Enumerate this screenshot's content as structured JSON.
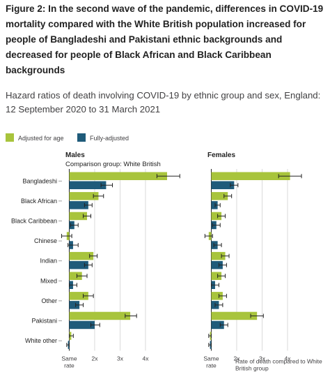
{
  "title": "Figure 2: In the second wave of the pandemic, differences in COVID-19 mortality compared with the White British population increased for people of Bangladeshi and Pakistani ethnic backgrounds and decreased for people of Black African and Black Caribbean backgrounds",
  "subtitle": "Hazard ratios of death involving COVID-19 by ethnic group and sex, England: 12 September 2020 to 31 March 2021",
  "colors": {
    "adjusted_for_age": "#a8c43c",
    "fully_adjusted": "#1f5b7a",
    "grid": "#d0d0d0",
    "axis": "#222222"
  },
  "chart_data": {
    "type": "bar",
    "orientation": "horizontal",
    "legend": [
      "Adjusted for age",
      "Fully-adjusted"
    ],
    "legend_placement": "top-left",
    "comparison_label": "Comparison group: White British",
    "x_ticks": [
      {
        "value": 1,
        "label": "Same rate"
      },
      {
        "value": 2,
        "label": "2x"
      },
      {
        "value": 3,
        "label": "3x"
      },
      {
        "value": 4,
        "label": "4x"
      }
    ],
    "x_axis_note": "Rate of death compared to White British group",
    "xlim": [
      0.85,
      5.0
    ],
    "grid": true,
    "categories": [
      "Bangladeshi",
      "Black African",
      "Black Caribbean",
      "Chinese",
      "Indian",
      "Mixed",
      "Other",
      "Pakistani",
      "White other"
    ],
    "panels": [
      {
        "name": "Males",
        "series": [
          {
            "name": "Adjusted for age",
            "values": [
              4.85,
              2.15,
              1.7,
              0.9,
              1.95,
              1.5,
              1.75,
              3.4,
              1.08
            ],
            "ci_low": [
              4.45,
              1.95,
              1.55,
              0.7,
              1.8,
              1.3,
              1.55,
              3.2,
              1.0
            ],
            "ci_high": [
              5.35,
              2.35,
              1.85,
              1.1,
              2.1,
              1.7,
              1.95,
              3.65,
              1.16
            ]
          },
          {
            "name": "Fully-adjusted",
            "values": [
              2.45,
              1.75,
              1.2,
              1.15,
              1.75,
              1.15,
              1.4,
              2.0,
              0.95
            ],
            "ci_low": [
              2.25,
              1.6,
              1.05,
              0.95,
              1.6,
              1.0,
              1.25,
              1.85,
              0.9
            ],
            "ci_high": [
              2.7,
              1.9,
              1.35,
              1.35,
              1.9,
              1.3,
              1.55,
              2.2,
              1.0
            ]
          }
        ]
      },
      {
        "name": "Females",
        "series": [
          {
            "name": "Adjusted for age",
            "values": [
              4.1,
              1.65,
              1.4,
              0.9,
              1.55,
              1.4,
              1.45,
              2.8,
              0.95
            ],
            "ci_low": [
              3.65,
              1.5,
              1.25,
              0.75,
              1.4,
              1.25,
              1.3,
              2.55,
              0.9
            ],
            "ci_high": [
              4.55,
              1.8,
              1.55,
              1.05,
              1.7,
              1.55,
              1.6,
              3.05,
              1.0
            ]
          },
          {
            "name": "Fully-adjusted",
            "values": [
              1.9,
              1.25,
              1.2,
              1.25,
              1.45,
              1.15,
              1.3,
              1.5,
              0.95
            ],
            "ci_low": [
              1.75,
              1.15,
              1.05,
              1.1,
              1.3,
              1.0,
              1.15,
              1.35,
              0.9
            ],
            "ci_high": [
              2.05,
              1.35,
              1.35,
              1.4,
              1.6,
              1.3,
              1.45,
              1.65,
              1.0
            ]
          }
        ]
      }
    ]
  }
}
